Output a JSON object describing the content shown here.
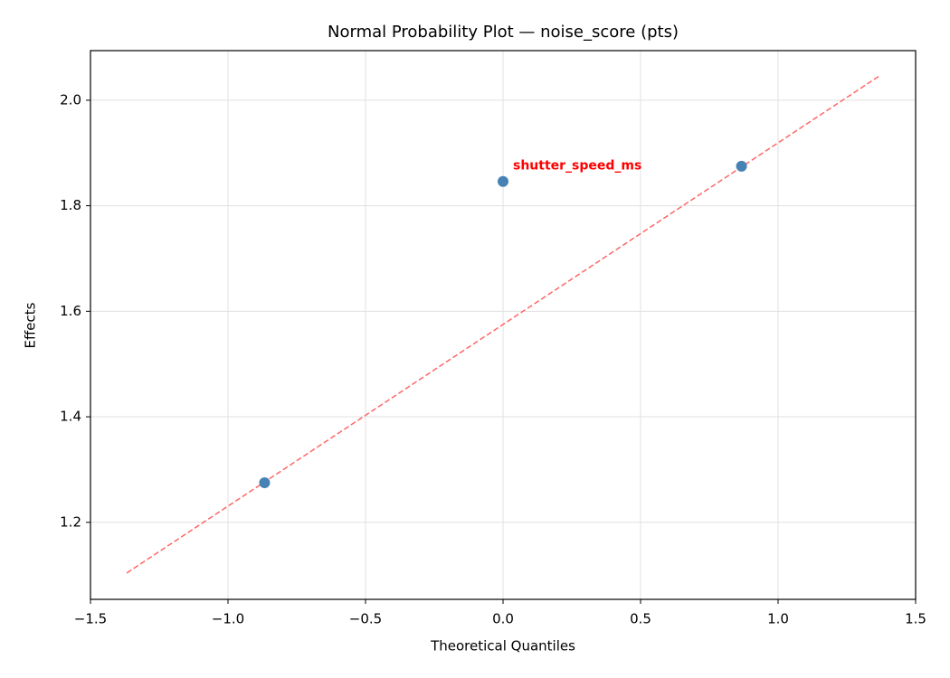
{
  "chart_data": {
    "type": "scatter",
    "title": "Normal Probability Plot — noise_score (pts)",
    "x_label": "Theoretical Quantiles",
    "y_label": "Effects",
    "points": {
      "x": [
        -0.867,
        0,
        0.867
      ],
      "values": [
        1.275,
        1.846,
        1.875
      ],
      "color": "#4682b4"
    },
    "reference_line": {
      "x": [
        -1.368,
        1.368
      ],
      "values": [
        1.104,
        2.046
      ],
      "color": "#ff6666",
      "style": "dashed"
    },
    "annotations": [
      {
        "text": "shutter_speed_ms",
        "point": 1,
        "color": "#ff0000"
      }
    ],
    "xlim": [
      -1.5,
      1.5
    ],
    "ylim": [
      1.054,
      2.094
    ],
    "xticks": [
      {
        "value": -1.5,
        "label": "−1.5"
      },
      {
        "value": -1,
        "label": "−1.0"
      },
      {
        "value": -0.5,
        "label": "−0.5"
      },
      {
        "value": 0,
        "label": "0.0"
      },
      {
        "value": 0.5,
        "label": "0.5"
      },
      {
        "value": 1,
        "label": "1.0"
      },
      {
        "value": 1.5,
        "label": "1.5"
      }
    ],
    "yticks": [
      {
        "value": 1.2,
        "label": "1.2"
      },
      {
        "value": 1.4,
        "label": "1.4"
      },
      {
        "value": 1.6,
        "label": "1.6"
      },
      {
        "value": 1.8,
        "label": "1.8"
      },
      {
        "value": 2.0,
        "label": "2.0"
      }
    ],
    "grid": true
  }
}
